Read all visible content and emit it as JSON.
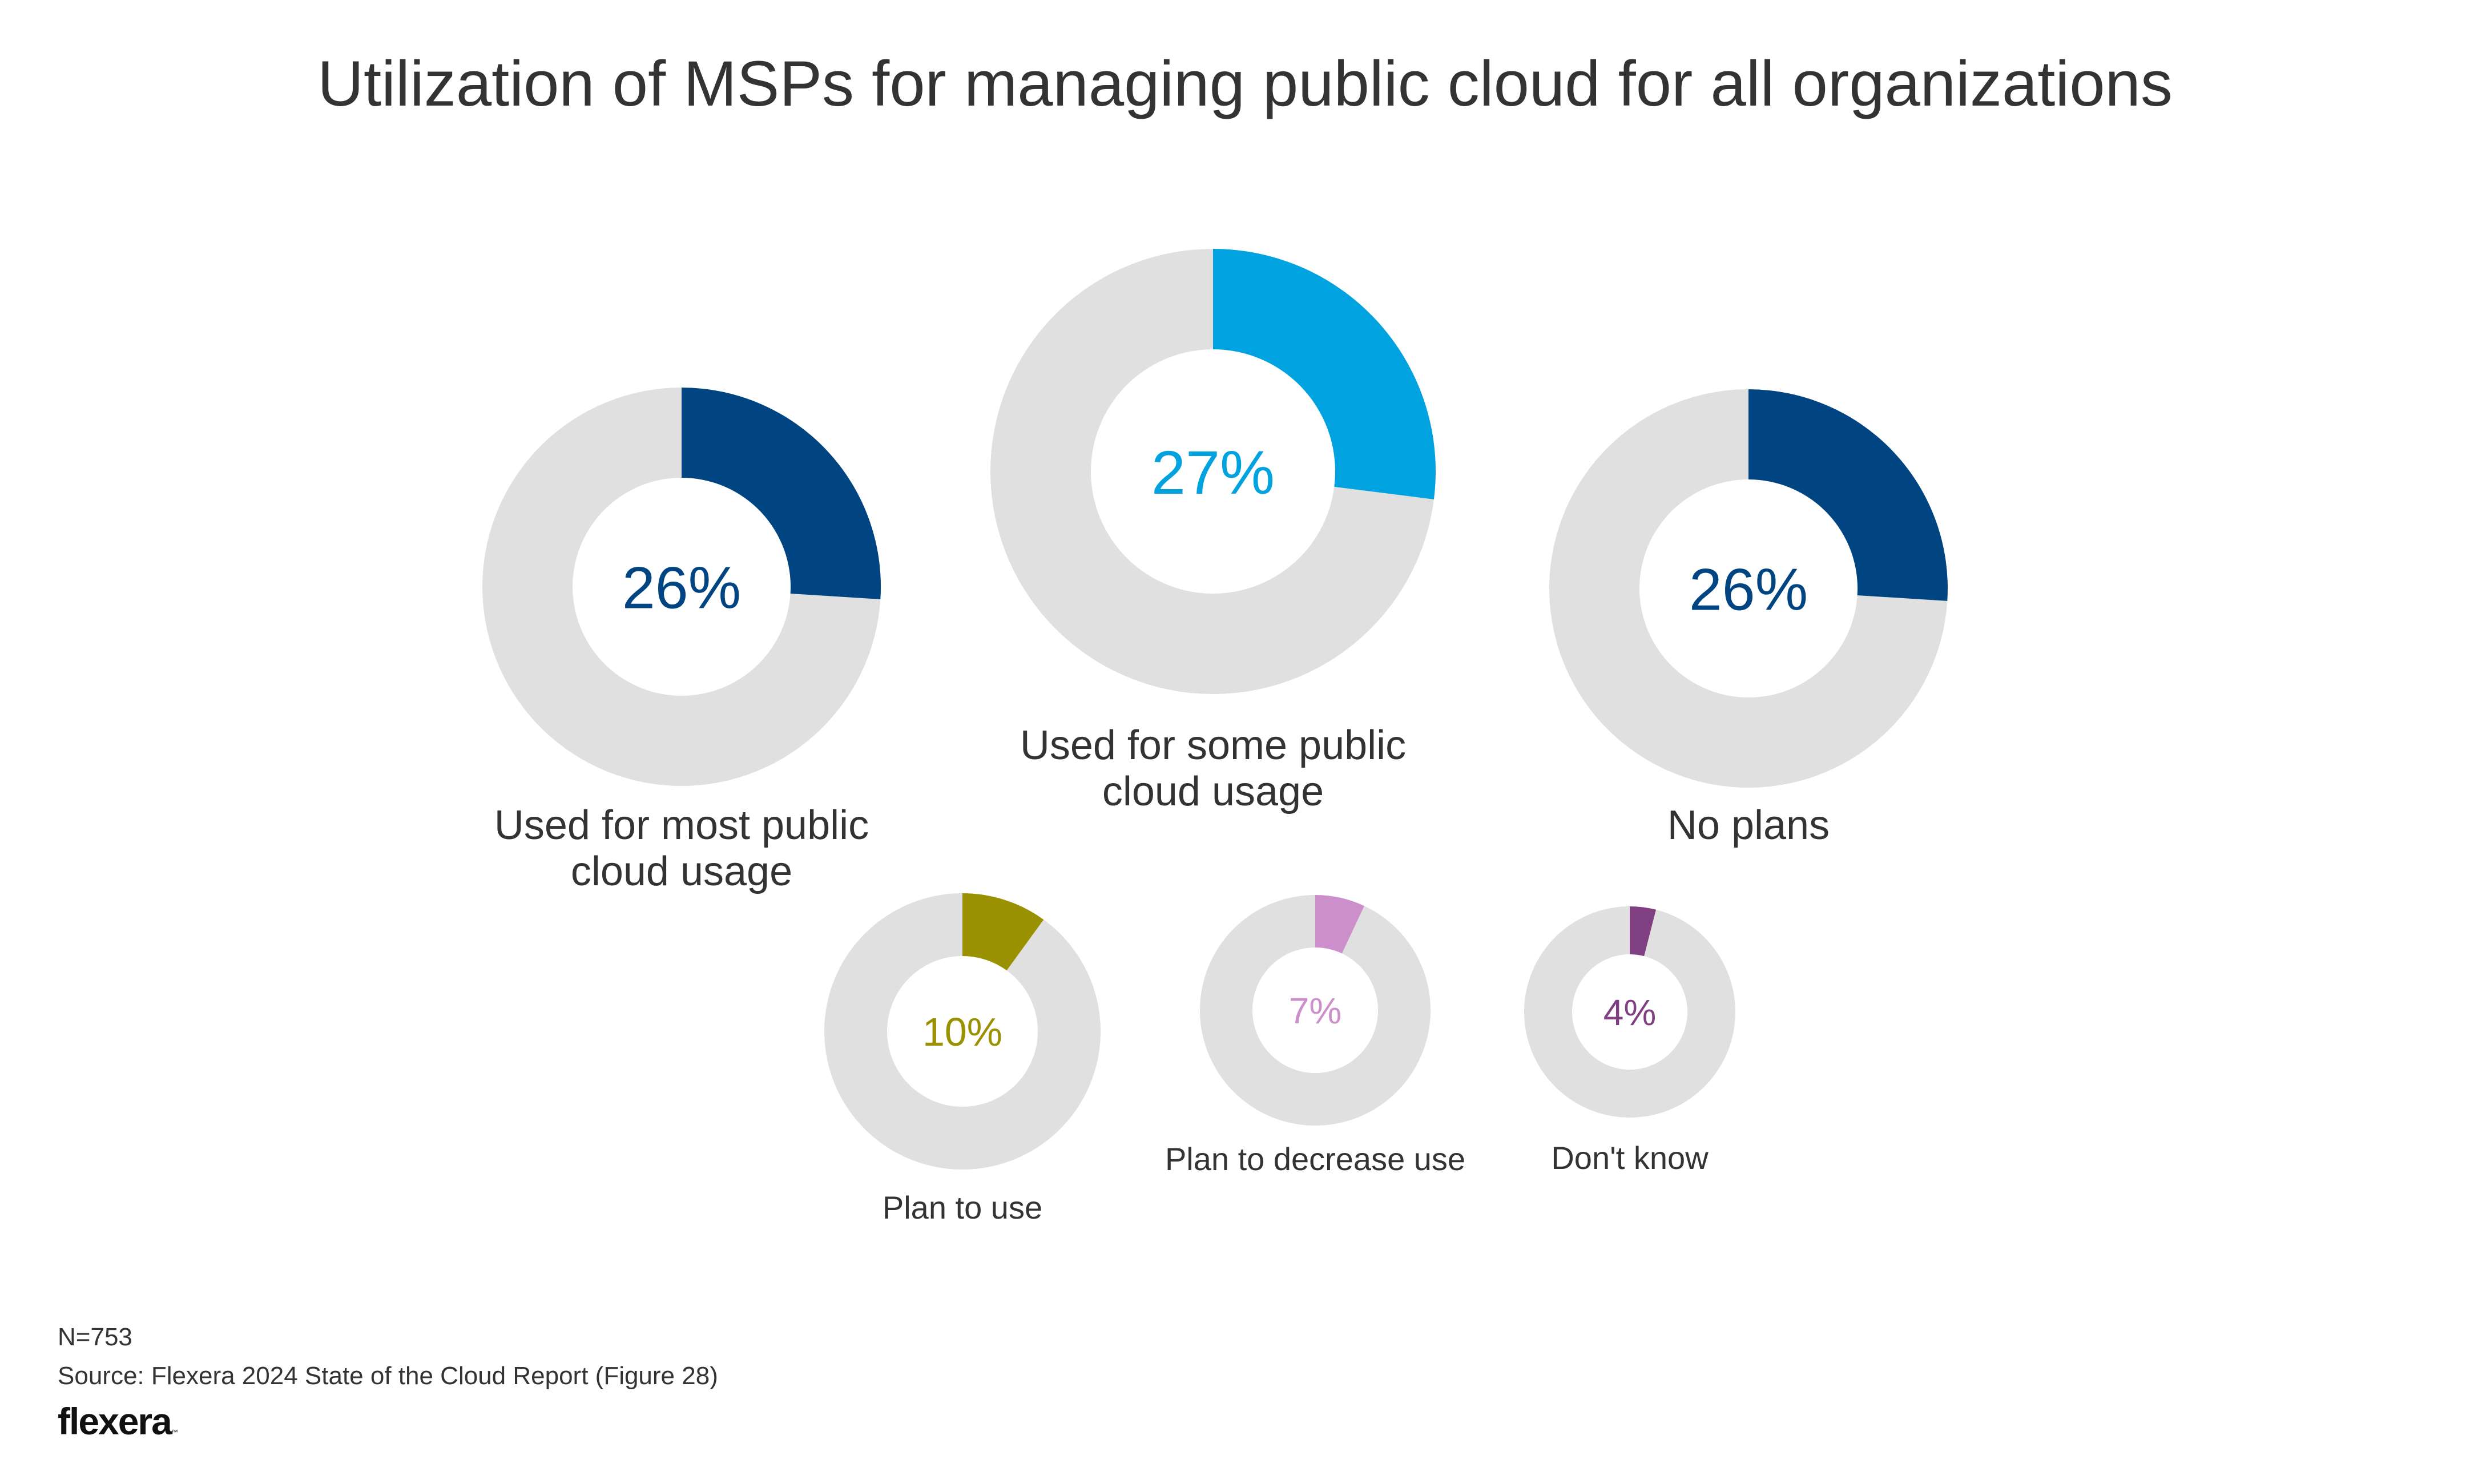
{
  "chart_data": {
    "type": "pie",
    "variant": "donut",
    "title": "Utilization of MSPs for managing public cloud for all organizations",
    "unit": "%",
    "track_color": "#e0e0e0",
    "series": [
      {
        "name": "Used for most public cloud usage",
        "label_lines": [
          "Used for most public",
          "cloud usage"
        ],
        "value": 26,
        "display": "26%",
        "color": "#004481"
      },
      {
        "name": "Used for some public cloud usage",
        "label_lines": [
          "Used for some public",
          "cloud usage"
        ],
        "value": 27,
        "display": "27%",
        "color": "#00a3e0"
      },
      {
        "name": "No plans",
        "label_lines": [
          "No plans"
        ],
        "value": 26,
        "display": "26%",
        "color": "#004481"
      },
      {
        "name": "Plan to use",
        "label_lines": [
          "Plan to use"
        ],
        "value": 10,
        "display": "10%",
        "color": "#999100"
      },
      {
        "name": "Plan to decrease use",
        "label_lines": [
          "Plan to decrease use"
        ],
        "value": 7,
        "display": "7%",
        "color": "#cc8fcb"
      },
      {
        "name": "Don't know",
        "label_lines": [
          "Don't know"
        ],
        "value": 4,
        "display": "4%",
        "color": "#7f3f80"
      }
    ]
  },
  "footer": {
    "note": "N=753",
    "source": "Source: Flexera 2024 State of the Cloud Report (Figure 28)",
    "logo": "flexera",
    "logo_mark": "™"
  }
}
